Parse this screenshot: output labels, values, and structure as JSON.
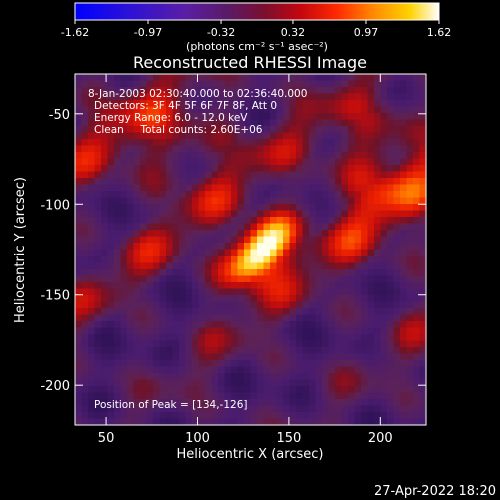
{
  "colorbar": {
    "ticks": [
      "-1.62",
      "-0.97",
      "-0.32",
      "0.32",
      "0.97",
      "1.62"
    ],
    "tick_values": [
      -1.62,
      -0.97,
      -0.32,
      0.32,
      0.97,
      1.62
    ],
    "range": [
      -1.62,
      1.62
    ],
    "units_label": "(photons cm⁻² s⁻¹ asec⁻²)"
  },
  "chart_data": {
    "type": "heatmap",
    "title": "Reconstructed RHESSI Image",
    "xlabel": "Heliocentric X (arcsec)",
    "ylabel": "Heliocentric Y (arcsec)",
    "xlim": [
      33,
      225
    ],
    "ylim": [
      -222,
      -28
    ],
    "xticks": [
      50,
      100,
      150,
      200
    ],
    "yticks": [
      -50,
      -100,
      -150,
      -200
    ],
    "peak": [
      134,
      -126
    ],
    "annotations": [
      "8-Jan-2003 02:30:40.000 to 02:36:40.000",
      "Detectors: 3F 4F 5F 6F 7F 8F, Att 0",
      "Energy Range: 6.0 - 12.0 keV",
      "Clean     Total counts: 2.60E+06",
      "Position of Peak = [134,-126]"
    ]
  },
  "footer_timestamp": "27-Apr-2022 18:20"
}
